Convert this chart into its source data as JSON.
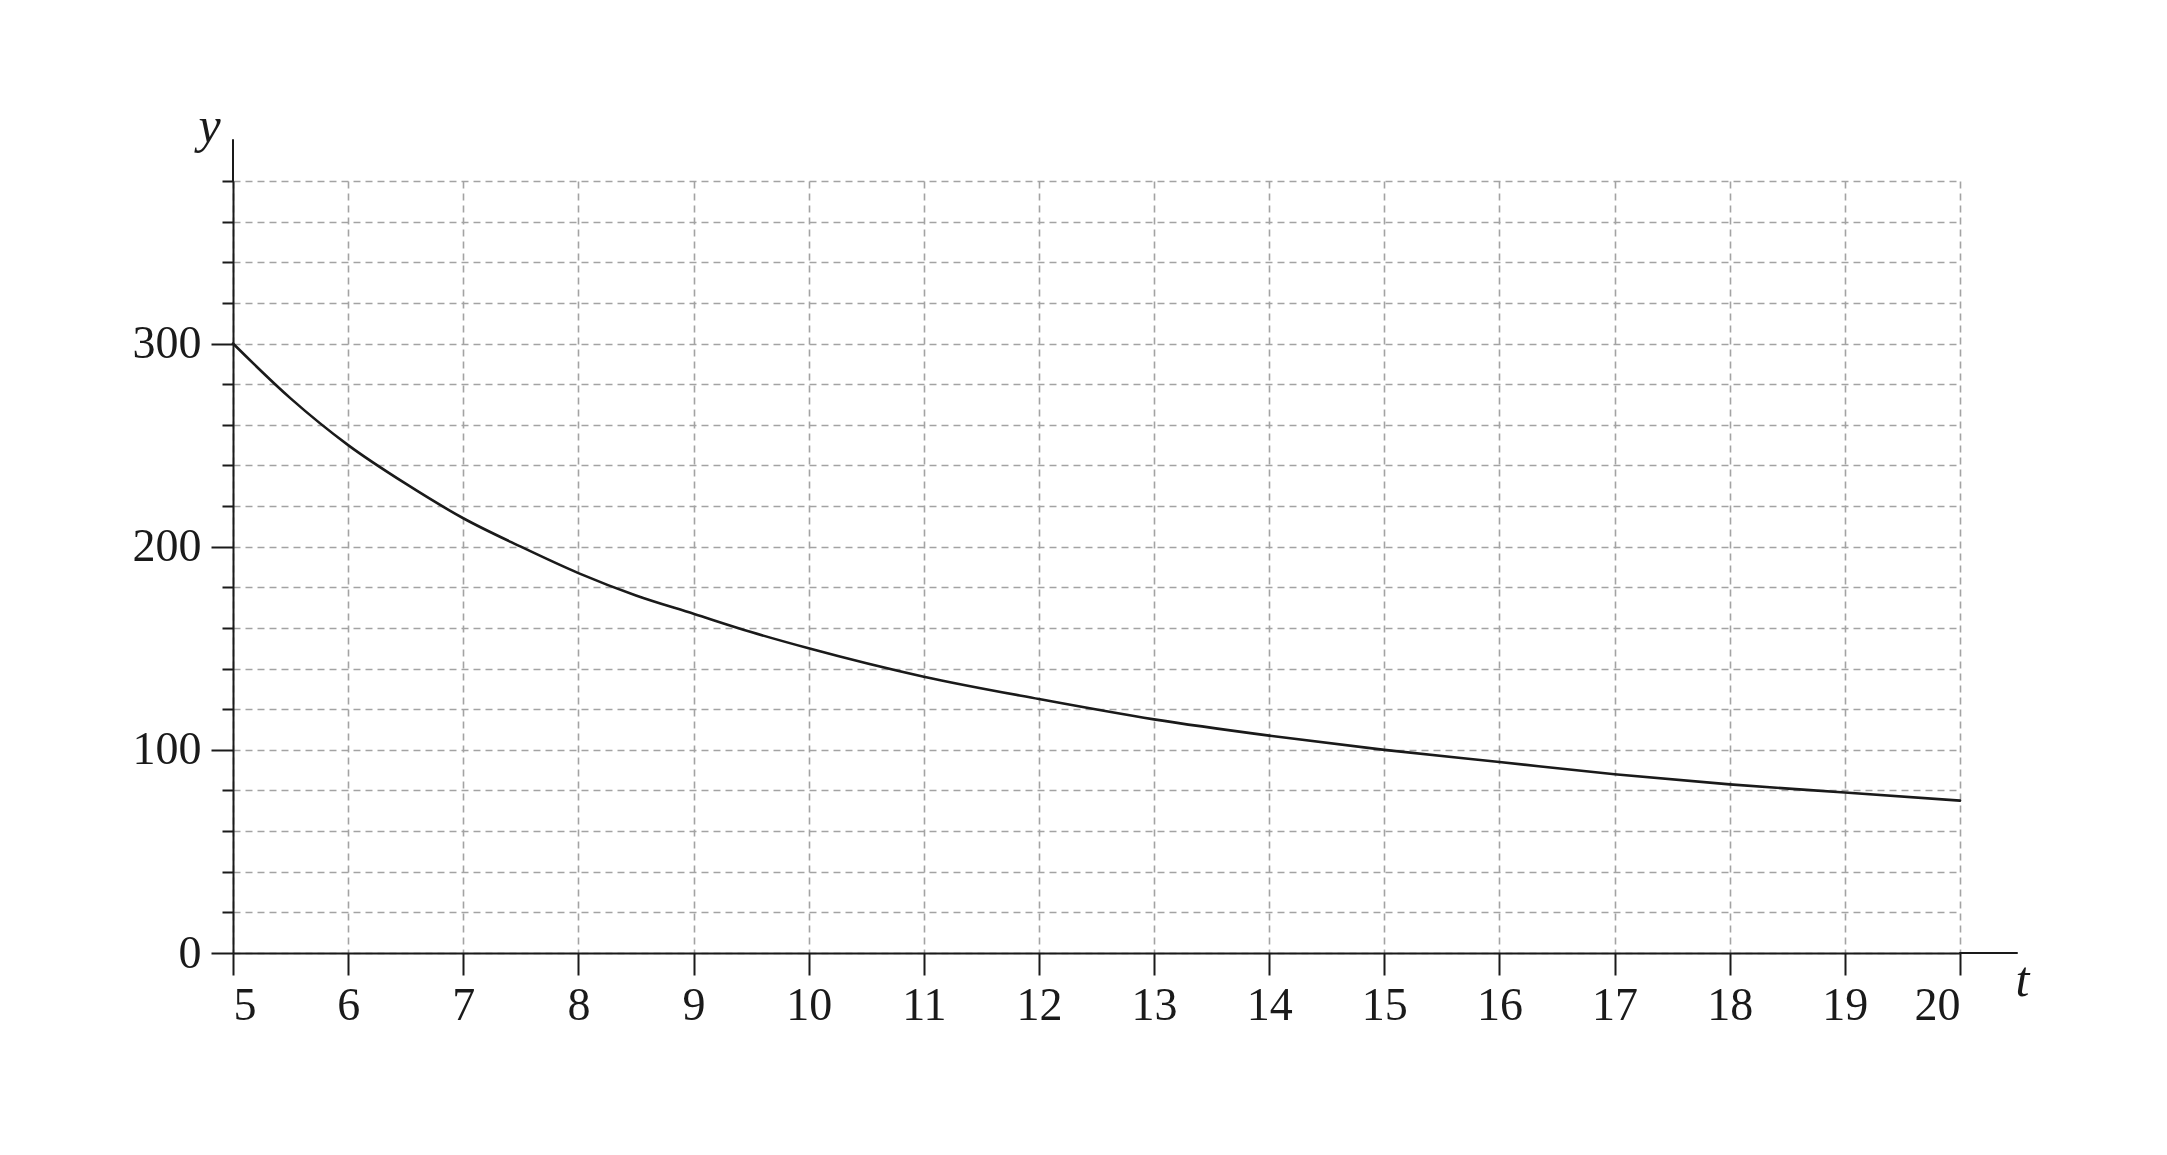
{
  "chart_data": {
    "type": "line",
    "xlabel": "t",
    "ylabel": "y",
    "x": [
      5,
      5.5,
      6,
      6.5,
      7,
      7.5,
      8,
      8.5,
      9,
      9.5,
      10,
      11,
      12,
      13,
      14,
      15,
      16,
      17,
      18,
      19,
      20
    ],
    "series": [
      {
        "color": "#1a1a1a",
        "values": [
          300,
          273,
          250,
          231,
          214,
          200,
          187,
          176,
          167,
          158,
          150,
          136,
          125,
          115,
          107,
          100,
          94,
          88,
          83,
          79,
          75
        ]
      }
    ],
    "xlim": [
      5,
      20
    ],
    "ylim": [
      0,
      380
    ],
    "xticks": [
      5,
      6,
      7,
      8,
      9,
      10,
      11,
      12,
      13,
      14,
      15,
      16,
      17,
      18,
      19,
      20
    ],
    "yticks": [
      0,
      {
        "value": 20,
        "label": null
      },
      {
        "value": 40,
        "label": null
      },
      {
        "value": 60,
        "label": null
      },
      {
        "value": 80,
        "label": null
      },
      100,
      {
        "value": 120,
        "label": null
      },
      {
        "value": 140,
        "label": null
      },
      {
        "value": 160,
        "label": null
      },
      {
        "value": 180,
        "label": null
      },
      200,
      {
        "value": 220,
        "label": null
      },
      {
        "value": 240,
        "label": null
      },
      {
        "value": 260,
        "label": null
      },
      {
        "value": 280,
        "label": null
      },
      300,
      {
        "value": 320,
        "label": null
      },
      {
        "value": 340,
        "label": null
      },
      {
        "value": 360,
        "label": null
      },
      {
        "value": 380,
        "label": null
      }
    ],
    "grid": true,
    "line_style": "solid"
  }
}
